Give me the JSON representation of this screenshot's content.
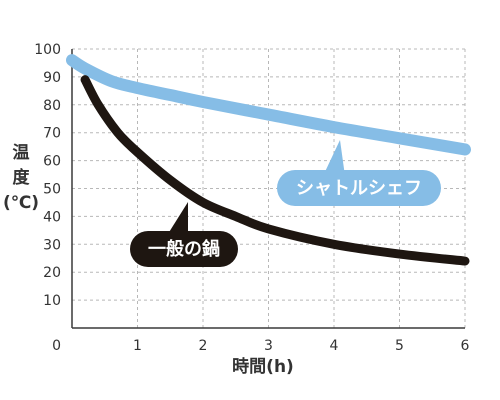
{
  "chart_data": {
    "type": "line",
    "xlabel": "時間(h)",
    "ylabel_chars": [
      "温",
      "度",
      "(℃)"
    ],
    "xlim": [
      0,
      6
    ],
    "ylim": [
      0,
      100
    ],
    "x_ticks": [
      0,
      1,
      2,
      3,
      4,
      5,
      6
    ],
    "y_ticks": [
      10,
      20,
      30,
      40,
      50,
      60,
      70,
      80,
      90,
      100
    ],
    "grid": true,
    "series": [
      {
        "name": "シャトルシェフ",
        "color": "#86bde6",
        "x": [
          0,
          0.2,
          0.6,
          1,
          1.5,
          2,
          3,
          4,
          5,
          6
        ],
        "y": [
          96,
          93,
          88.5,
          86,
          83.5,
          81,
          76.5,
          72,
          68,
          64
        ]
      },
      {
        "name": "一般の鍋",
        "color": "#1e1611",
        "x": [
          0.2,
          0.4,
          0.7,
          1,
          1.5,
          2,
          2.5,
          3,
          4,
          5,
          6
        ],
        "y": [
          89,
          80,
          70,
          63,
          53,
          45,
          40,
          35.5,
          30,
          26.5,
          24
        ]
      }
    ]
  }
}
